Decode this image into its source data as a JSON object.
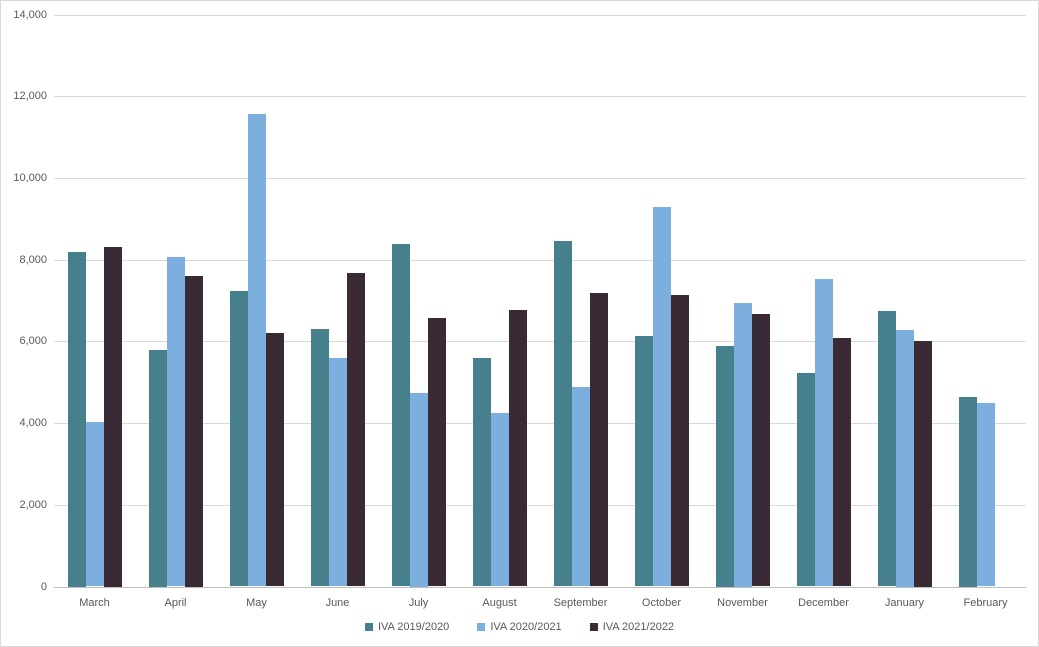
{
  "chart_data": {
    "type": "bar",
    "title": "",
    "xlabel": "",
    "ylabel": "",
    "categories": [
      "March",
      "April",
      "May",
      "June",
      "July",
      "August",
      "September",
      "October",
      "November",
      "December",
      "January",
      "February"
    ],
    "series": [
      {
        "name": "IVA 2019/2020",
        "color": "#45808C",
        "values": [
          8200,
          5790,
          7230,
          6300,
          8380,
          5600,
          8460,
          6130,
          5900,
          5220,
          6740,
          4640
        ]
      },
      {
        "name": "IVA 2020/2021",
        "color": "#7CAFDD",
        "values": [
          4030,
          8070,
          11560,
          5600,
          4750,
          4250,
          4880,
          9300,
          6940,
          7520,
          6280,
          4490
        ]
      },
      {
        "name": "IVA 2021/2022",
        "color": "#392A35",
        "values": [
          8310,
          7600,
          6210,
          7680,
          6580,
          6770,
          7180,
          7130,
          6660,
          6090,
          6010,
          null
        ]
      }
    ],
    "ylim": [
      0,
      14000
    ],
    "ytick_step": 2000,
    "ytick_labels": [
      "0",
      "2,000",
      "4,000",
      "6,000",
      "8,000",
      "10,000",
      "12,000",
      "14,000"
    ],
    "grid": true,
    "legend_position": "bottom",
    "colors": {
      "gridline": "#D9D9D9",
      "axis_line": "#BFBFBF",
      "tick_text": "#595959",
      "background": "#FFFFFF",
      "frame_border": "#D9D9D9"
    }
  }
}
